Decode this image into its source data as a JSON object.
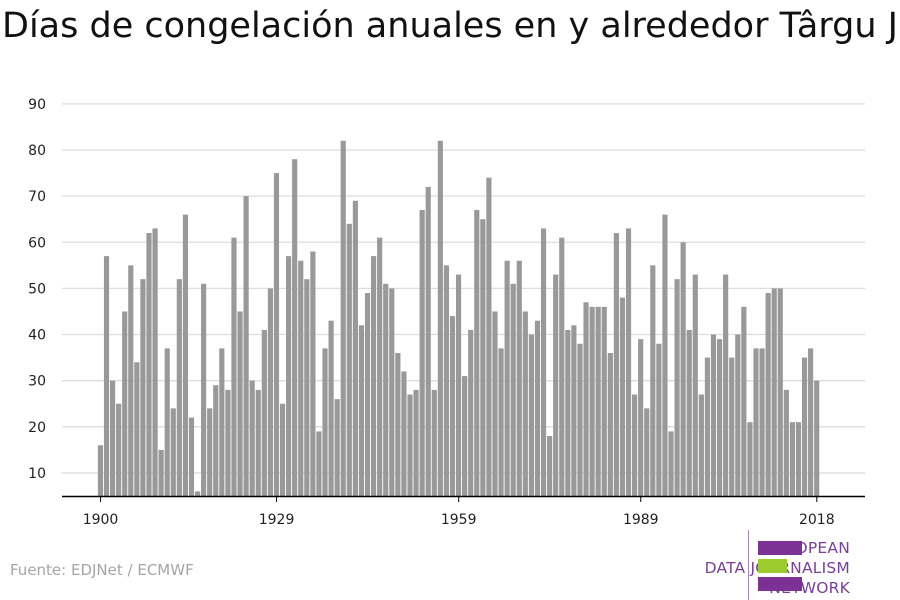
{
  "title": "Días de congelación anuales en y alrededor Târgu Jiu",
  "source": "Fuente: EDJNet / ECMWF",
  "logo": {
    "lines": [
      "EUROPEAN",
      "DATA JOURNALISM",
      "NETWORK"
    ],
    "colors": {
      "purple": "#7b3294",
      "green": "#9ccb2e"
    }
  },
  "colors": {
    "bar": "#999999",
    "grid": "#dddddd",
    "axis": "#000000"
  },
  "chart_data": {
    "type": "bar",
    "title": "Días de congelación anuales en y alrededor Târgu Jiu",
    "xlabel": "",
    "ylabel": "",
    "ylim": [
      5,
      92
    ],
    "y_ticks": [
      10,
      20,
      30,
      40,
      50,
      60,
      70,
      80,
      90
    ],
    "x_ticks": [
      1900,
      1929,
      1959,
      1989,
      2018
    ],
    "grid": true,
    "series": [
      {
        "x": [
          1900,
          1901,
          1902,
          1903,
          1904,
          1905,
          1906,
          1907,
          1908,
          1909,
          1910,
          1911,
          1912,
          1913,
          1914,
          1915,
          1916,
          1917,
          1918,
          1919,
          1920,
          1921,
          1922,
          1923,
          1924,
          1925,
          1926,
          1927,
          1928,
          1929,
          1930,
          1931,
          1932,
          1933,
          1934,
          1935,
          1936,
          1937,
          1938,
          1939,
          1940,
          1941,
          1942,
          1943,
          1944,
          1945,
          1946,
          1947,
          1948,
          1949,
          1950,
          1951,
          1952,
          1953,
          1954,
          1955,
          1956,
          1957,
          1958,
          1959,
          1960,
          1961,
          1962,
          1963,
          1964,
          1965,
          1966,
          1967,
          1968,
          1969,
          1970,
          1971,
          1972,
          1973,
          1974,
          1975,
          1976,
          1977,
          1978,
          1979,
          1980,
          1981,
          1982,
          1983,
          1984,
          1985,
          1986,
          1987,
          1988,
          1989,
          1990,
          1991,
          1992,
          1993,
          1994,
          1995,
          1996,
          1997,
          1998,
          1999,
          2000,
          2001,
          2002,
          2003,
          2004,
          2005,
          2006,
          2007,
          2008,
          2009,
          2010,
          2011,
          2012,
          2013,
          2014,
          2015,
          2016,
          2017,
          2018
        ],
        "values": [
          16,
          57,
          30,
          25,
          45,
          55,
          34,
          52,
          62,
          63,
          15,
          37,
          24,
          52,
          66,
          22,
          6,
          51,
          24,
          29,
          37,
          28,
          61,
          45,
          70,
          30,
          28,
          41,
          50,
          75,
          25,
          57,
          78,
          56,
          52,
          58,
          19,
          37,
          43,
          26,
          82,
          64,
          69,
          42,
          49,
          57,
          61,
          51,
          50,
          36,
          32,
          27,
          28,
          67,
          72,
          28,
          82,
          55,
          44,
          53,
          31,
          41,
          67,
          65,
          74,
          45,
          37,
          56,
          51,
          56,
          45,
          40,
          43,
          63,
          18,
          53,
          61,
          41,
          42,
          38,
          47,
          46,
          46,
          46,
          36,
          62,
          48,
          63,
          27,
          39,
          24,
          55,
          38,
          66,
          19,
          52,
          60,
          41,
          53,
          27,
          35,
          40,
          39,
          53,
          35,
          40,
          46,
          21,
          37,
          37,
          49,
          50,
          50,
          28,
          21,
          21,
          35,
          37,
          30
        ]
      }
    ]
  }
}
